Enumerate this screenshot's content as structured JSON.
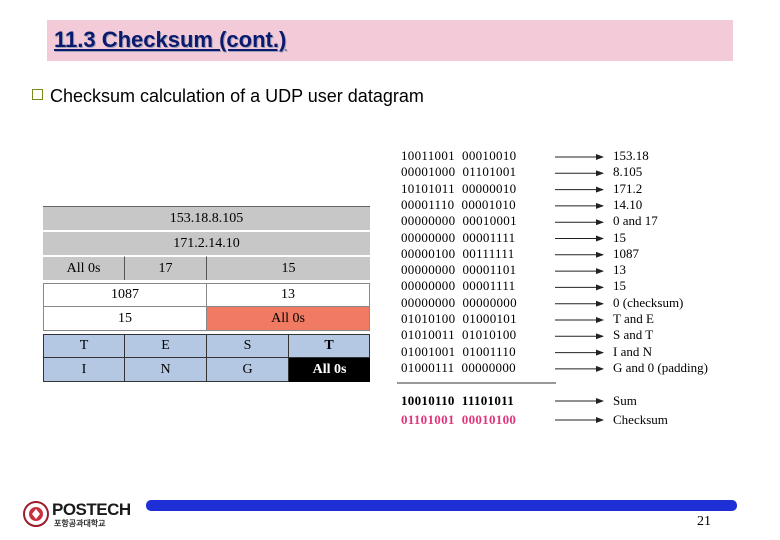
{
  "title": "11.3 Checksum (cont.)",
  "bullet": "Checksum calculation of a UDP user datagram",
  "diagram": {
    "pseudo_src": "153.18.8.105",
    "pseudo_dst": "171.2.14.10",
    "pseudo_row3": [
      "All 0s",
      "17",
      "15"
    ],
    "header_row1": [
      "1087",
      "13"
    ],
    "header_row2": [
      "15",
      "All 0s"
    ],
    "data_row1": [
      "T",
      "E",
      "S",
      "T"
    ],
    "data_row2": [
      "I",
      "N",
      "G",
      "All 0s"
    ]
  },
  "rows": [
    {
      "bits": "10011001  00010010",
      "result": "153.18"
    },
    {
      "bits": "00001000  01101001",
      "result": "8.105"
    },
    {
      "bits": "10101011  00000010",
      "result": "171.2"
    },
    {
      "bits": "00001110  00001010",
      "result": "14.10"
    },
    {
      "bits": "00000000  00010001",
      "result": "0 and 17"
    },
    {
      "bits": "00000000  00001111",
      "result": "15"
    },
    {
      "bits": "00000100  00111111",
      "result": "1087"
    },
    {
      "bits": "00000000  00001101",
      "result": "13"
    },
    {
      "bits": "00000000  00001111",
      "result": "15"
    },
    {
      "bits": "00000000  00000000",
      "result": "0 (checksum)"
    },
    {
      "bits": "01010100  01000101",
      "result": "T and E"
    },
    {
      "bits": "01010011  01010100",
      "result": "S and T"
    },
    {
      "bits": "01001001  01001110",
      "result": "I and N"
    },
    {
      "bits": "01000111  00000000",
      "result": "G and 0 (padding)"
    }
  ],
  "sum": {
    "bits": "10010110  11101011",
    "label": "Sum"
  },
  "checksum": {
    "bits": "01101001  00010100",
    "label": "Checksum"
  },
  "footer": {
    "logo": "POSTECH",
    "logo_sub": "포항공과대학교",
    "page": "21"
  }
}
